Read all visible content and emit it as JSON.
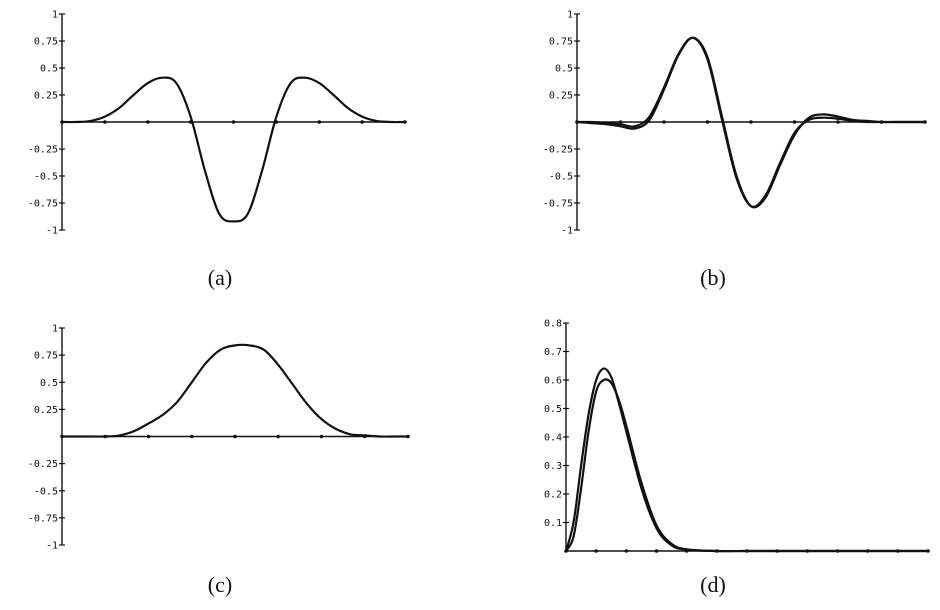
{
  "chart_data": [
    {
      "panel": "(a)",
      "type": "line",
      "x": [
        0,
        0.5,
        1,
        1.5,
        2,
        2.5,
        3,
        3.5,
        4,
        4.5,
        5,
        5.5,
        6,
        6.5,
        7,
        7.5,
        8,
        8.5,
        9,
        9.5,
        10,
        10.5,
        11,
        11.5,
        12
      ],
      "series": [
        {
          "values": [
            0,
            0,
            0.01,
            0.05,
            0.13,
            0.25,
            0.36,
            0.41,
            0.36,
            0.05,
            -0.45,
            -0.85,
            -0.92,
            -0.85,
            -0.45,
            0.05,
            0.36,
            0.41,
            0.36,
            0.25,
            0.13,
            0.05,
            0.01,
            0,
            0
          ]
        }
      ],
      "xlim": [
        0,
        12
      ],
      "ylim": [
        -1,
        1
      ],
      "y_ticks": [
        -1,
        -0.75,
        -0.5,
        -0.25,
        0.25,
        0.5,
        0.75,
        1
      ],
      "y_tick_labels": [
        "-1",
        "-0.75",
        "-0.5",
        "-0.25",
        "0.25",
        "0.5",
        "0.75",
        "1"
      ],
      "x_axis_markers": 8,
      "title": "",
      "xlabel": "",
      "ylabel": "",
      "grid": false
    },
    {
      "panel": "(b)",
      "type": "line",
      "x": [
        0,
        0.5,
        1,
        1.5,
        2,
        2.5,
        3,
        3.5,
        4,
        4.5,
        5,
        5.5,
        6,
        6.5,
        7,
        7.5,
        8,
        8.5,
        9,
        9.5,
        10,
        10.5,
        11,
        11.5,
        12
      ],
      "series": [
        {
          "values": [
            0,
            -0.01,
            -0.02,
            -0.04,
            -0.06,
            0.02,
            0.3,
            0.62,
            0.78,
            0.6,
            0.05,
            -0.5,
            -0.78,
            -0.7,
            -0.4,
            -0.12,
            0.04,
            0.07,
            0.05,
            0.02,
            0.01,
            0,
            0,
            0,
            0
          ]
        },
        {
          "values": [
            0,
            0,
            -0.01,
            -0.02,
            -0.04,
            0.05,
            0.32,
            0.63,
            0.78,
            0.58,
            0.02,
            -0.52,
            -0.78,
            -0.68,
            -0.38,
            -0.1,
            0.02,
            0.04,
            0.03,
            0.01,
            0,
            0,
            0,
            0,
            0
          ]
        }
      ],
      "xlim": [
        0,
        12
      ],
      "ylim": [
        -1,
        1
      ],
      "y_ticks": [
        -1,
        -0.75,
        -0.5,
        -0.25,
        0.25,
        0.5,
        0.75,
        1
      ],
      "y_tick_labels": [
        "-1",
        "-0.75",
        "-0.5",
        "-0.25",
        "0.25",
        "0.5",
        "0.75",
        "1"
      ],
      "x_axis_markers": 8,
      "title": "",
      "xlabel": "",
      "ylabel": "",
      "grid": false
    },
    {
      "panel": "(c)",
      "type": "line",
      "x": [
        0,
        0.5,
        1,
        1.5,
        2,
        2.5,
        3,
        3.5,
        4,
        4.5,
        5,
        5.5,
        6,
        6.5,
        7,
        7.5,
        8,
        8.5,
        9,
        9.5,
        10,
        10.5,
        11,
        11.5,
        12
      ],
      "series": [
        {
          "values": [
            0,
            0,
            0,
            0,
            0.01,
            0.05,
            0.12,
            0.2,
            0.32,
            0.5,
            0.68,
            0.8,
            0.84,
            0.84,
            0.8,
            0.66,
            0.48,
            0.3,
            0.16,
            0.07,
            0.02,
            0.01,
            0,
            0,
            0
          ]
        }
      ],
      "xlim": [
        0,
        12
      ],
      "ylim": [
        -1,
        1
      ],
      "y_ticks": [
        -1,
        -0.75,
        -0.5,
        -0.25,
        0.25,
        0.5,
        0.75,
        1
      ],
      "y_tick_labels": [
        "-1",
        "-0.75",
        "-0.5",
        "-0.25",
        "0.25",
        "0.5",
        "0.75",
        "1"
      ],
      "x_axis_markers": 8,
      "title": "",
      "xlabel": "",
      "ylabel": "",
      "grid": false
    },
    {
      "panel": "(d)",
      "type": "line",
      "x": [
        0,
        0.25,
        0.5,
        0.75,
        1,
        1.25,
        1.5,
        1.75,
        2,
        2.5,
        3,
        3.5,
        4,
        5,
        6,
        7,
        8,
        9,
        10,
        11,
        12
      ],
      "series": [
        {
          "values": [
            0,
            0.1,
            0.3,
            0.48,
            0.6,
            0.64,
            0.61,
            0.52,
            0.42,
            0.22,
            0.08,
            0.02,
            0.005,
            0,
            0,
            0,
            0,
            0,
            0,
            0,
            0
          ]
        },
        {
          "values": [
            0,
            0.05,
            0.22,
            0.42,
            0.56,
            0.6,
            0.59,
            0.53,
            0.44,
            0.24,
            0.09,
            0.025,
            0.006,
            0,
            0,
            0,
            0,
            0,
            0,
            0,
            0
          ]
        }
      ],
      "xlim": [
        0,
        12
      ],
      "ylim": [
        0,
        0.8
      ],
      "y_ticks": [
        0.1,
        0.2,
        0.3,
        0.4,
        0.5,
        0.6,
        0.7,
        0.8
      ],
      "y_tick_labels": [
        "0.1",
        "0.2",
        "0.3",
        "0.4",
        "0.5",
        "0.6",
        "0.7",
        "0.8"
      ],
      "x_axis_markers": 12,
      "title": "",
      "xlabel": "",
      "ylabel": "",
      "grid": false
    }
  ],
  "colors": {
    "ink": "#111111",
    "background": "#ffffff"
  }
}
